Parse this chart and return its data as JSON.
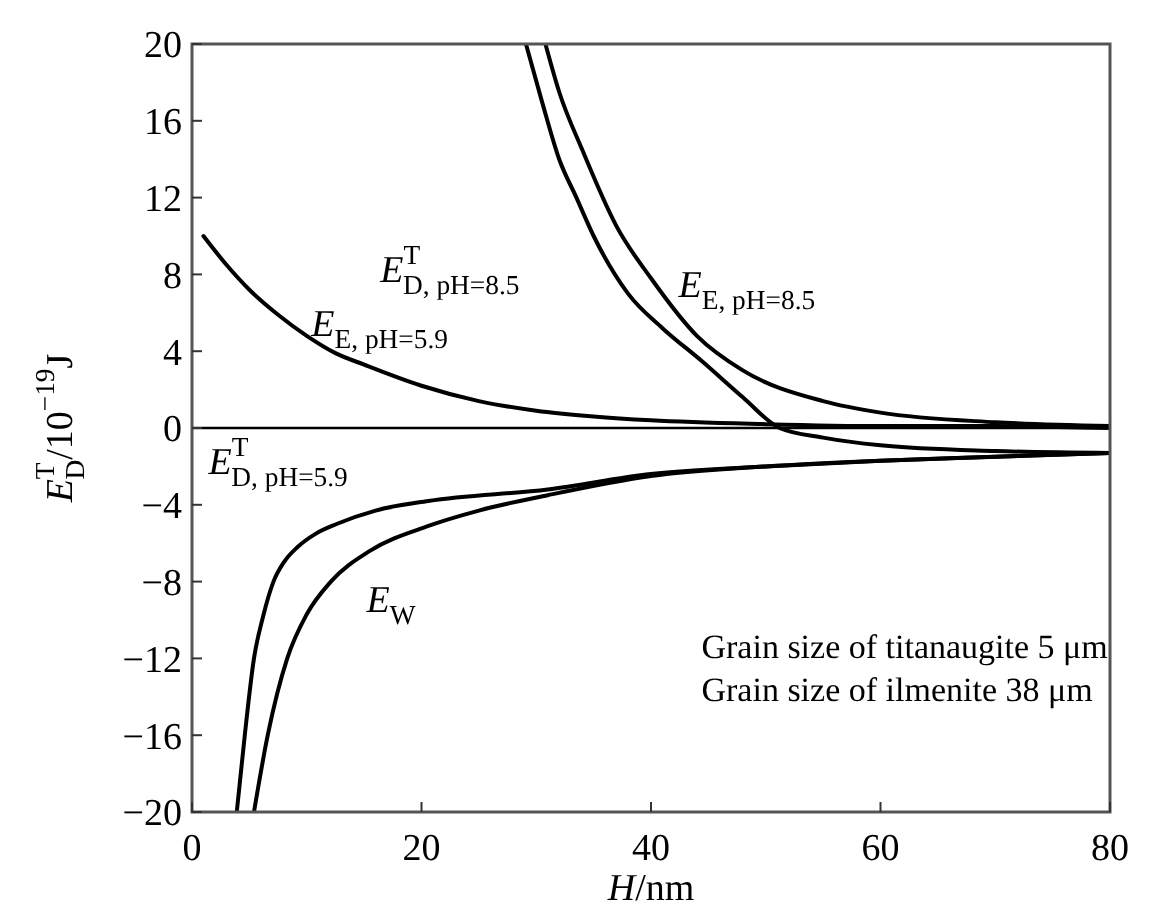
{
  "chart_data": {
    "type": "line",
    "xlabel": "H/nm",
    "ylabel": "E$^{T}$$_{D}$/10$^{−19}$J",
    "xlim": [
      0,
      80
    ],
    "ylim": [
      -20,
      20
    ],
    "xticks": [
      0,
      20,
      40,
      60,
      80
    ],
    "yticks": [
      -20,
      -16,
      -12,
      -8,
      -4,
      0,
      4,
      8,
      12,
      16,
      20
    ],
    "grid": false,
    "marker": "none",
    "line_style": "solid",
    "ref_lines": [
      {
        "axis": "y",
        "value": 0,
        "color": "#000000"
      }
    ],
    "series": [
      {
        "color": "#000000",
        "x": [
          1,
          3,
          5,
          7.5,
          10,
          12.5,
          15,
          20,
          25,
          30,
          35,
          40,
          50,
          60,
          70,
          80
        ],
        "values": [
          10,
          8.5,
          7.2,
          5.9,
          4.8,
          3.9,
          3.3,
          2.2,
          1.4,
          0.9,
          0.6,
          0.4,
          0.2,
          0.1,
          0.1,
          0
        ]
      },
      {
        "color": "#000000",
        "x": [
          29.1,
          30.5,
          32,
          33.5,
          35,
          38,
          41,
          44.4,
          48,
          51.2,
          55,
          60,
          70,
          80
        ],
        "values": [
          20,
          17,
          14,
          12,
          10,
          7,
          5.2,
          3.5,
          1.6,
          0,
          -0.5,
          -0.9,
          -1.2,
          -1.3
        ]
      },
      {
        "color": "#000000",
        "x": [
          30.8,
          32,
          34,
          37,
          40,
          44,
          48,
          55,
          60,
          70,
          80
        ],
        "values": [
          20,
          17.5,
          14.5,
          10.5,
          7.8,
          4.8,
          3,
          1.4,
          0.8,
          0.3,
          0.1
        ]
      },
      {
        "color": "#000000",
        "x": [
          3.9,
          4.6,
          5.4,
          6.2,
          7.1,
          8,
          9.2,
          10.8,
          12.6,
          16,
          20.6,
          31,
          40,
          50,
          60,
          70,
          80
        ],
        "values": [
          -20,
          -16,
          -12,
          -9.8,
          -8,
          -7,
          -6.2,
          -5.5,
          -5,
          -4.3,
          -3.8,
          -3.2,
          -2.4,
          -2,
          -1.7,
          -1.5,
          -1.3
        ]
      },
      {
        "color": "#000000",
        "x": [
          5.4,
          6.6,
          8.3,
          10,
          12.1,
          15.5,
          20.6,
          25,
          31,
          40,
          50,
          60,
          70,
          80
        ],
        "values": [
          -20,
          -16,
          -12,
          -9.7,
          -8,
          -6.4,
          -5.1,
          -4.3,
          -3.5,
          -2.5,
          -2,
          -1.7,
          -1.5,
          -1.3
        ]
      }
    ],
    "annotations": [
      "E$_{E, pH=5.9}$",
      "E$^{T}$$_{D, pH=8.5}$",
      "E$_{E, pH=8.5}$",
      "E$^{T}$$_{D, pH=5.9}$",
      "E$_{W}$",
      "Grain size of titanaugite 5 μm",
      "Grain size of ilmenite 38 μm"
    ]
  }
}
